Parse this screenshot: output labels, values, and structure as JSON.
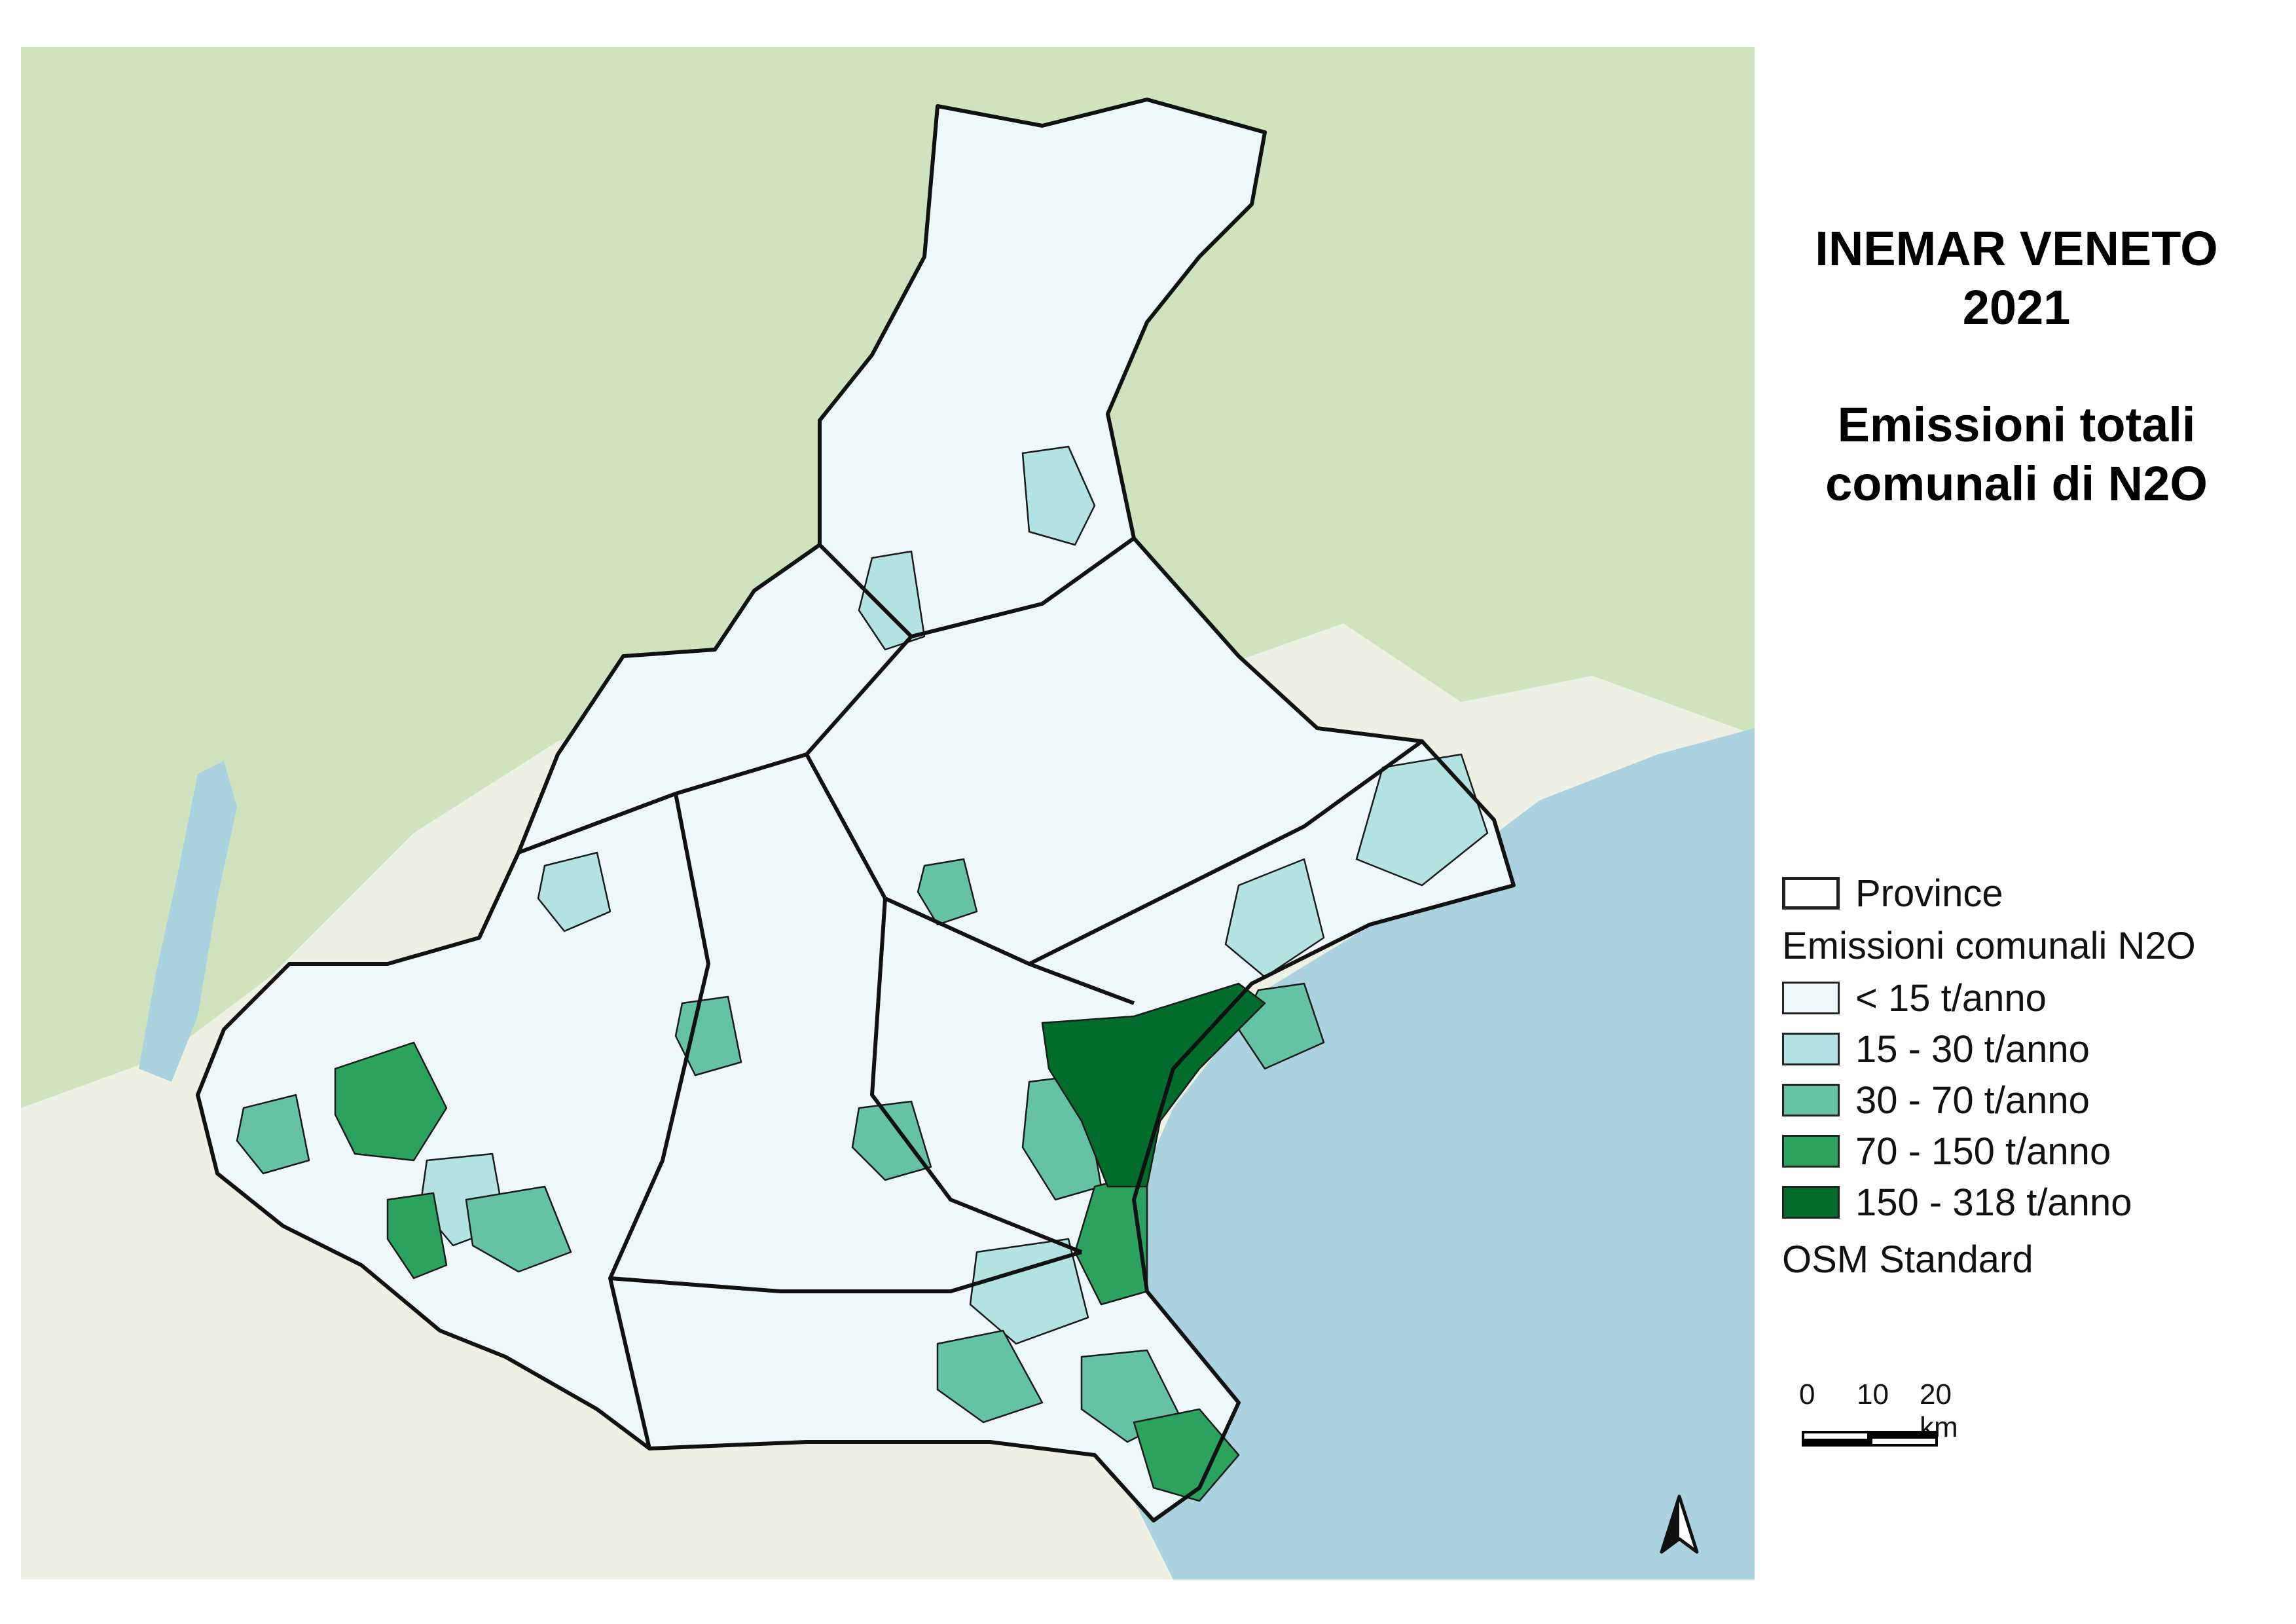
{
  "title": {
    "line1": "INEMAR VENETO",
    "line2": "2021",
    "line3": "Emissioni totali",
    "line4": "comunali di N2O"
  },
  "legend": {
    "province_label": "Province",
    "heading": "Emissioni comunali N2O",
    "classes": [
      {
        "label": "< 15 t/anno",
        "color": "#eef8fa"
      },
      {
        "label": "15 - 30 t/anno",
        "color": "#b2e2e2"
      },
      {
        "label": "30 - 70 t/anno",
        "color": "#66c2a4"
      },
      {
        "label": "70 - 150 t/anno",
        "color": "#2ca25f"
      },
      {
        "label": "150 - 318 t/anno",
        "color": "#006d2c"
      }
    ],
    "basemap_label": "OSM Standard"
  },
  "scalebar": {
    "labels": [
      "0",
      "10",
      "20 km"
    ]
  },
  "colors": {
    "sea": "#abd3df",
    "lowland": "#eef0e4",
    "mountain": "#cfe3bf",
    "border": "#111111"
  },
  "icons": {
    "north": "north-arrow-icon"
  }
}
